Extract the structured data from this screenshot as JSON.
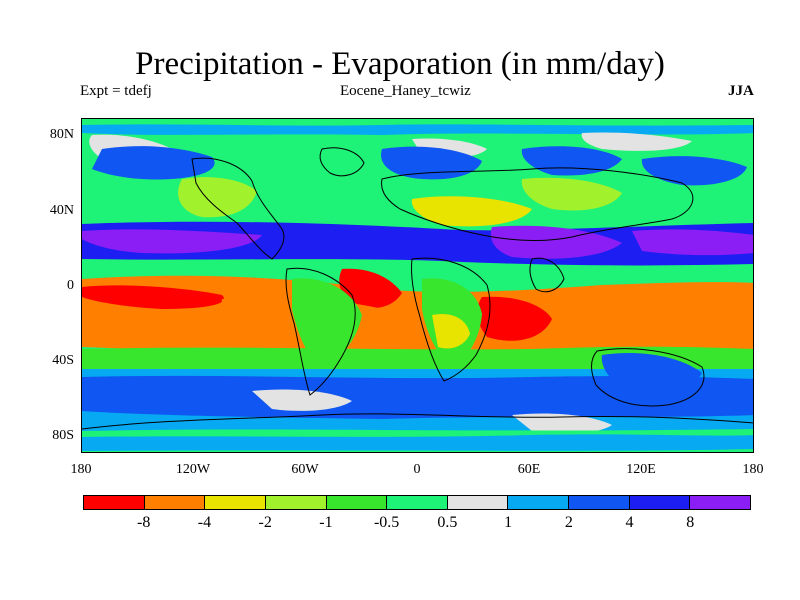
{
  "title": "Precipitation - Evaporation (in mm/day)",
  "subtitle_left": "Expt = tdefj",
  "subtitle_center": "Eocene_Haney_tcwiz",
  "season": "JJA",
  "y_axis_labels": [
    "80N",
    "40N",
    "0",
    "40S",
    "80S"
  ],
  "x_axis_labels": [
    "180",
    "120W",
    "60W",
    "0",
    "60E",
    "120E",
    "180"
  ],
  "colorbar": {
    "colors": [
      "#ff0000",
      "#ff7f00",
      "#e9e300",
      "#a1f22c",
      "#38e62d",
      "#1ef277",
      "#e3e3e3",
      "#07a9f3",
      "#0f56f2",
      "#1d1ef2",
      "#8a1ef4"
    ],
    "labels": [
      "-8",
      "-4",
      "-2",
      "-1",
      "-0.5",
      "0.5",
      "1",
      "2",
      "4",
      "8"
    ]
  },
  "map_colors": {
    "red": "#ff0000",
    "orange": "#ff7f00",
    "yellow": "#e9e300",
    "lime": "#a1f22c",
    "green": "#38e62d",
    "teal": "#1ef277",
    "gray": "#e3e3e3",
    "lightblue": "#07a9f3",
    "blue": "#0f56f2",
    "darkblue": "#1d1ef2",
    "purple": "#8a1ef4"
  }
}
